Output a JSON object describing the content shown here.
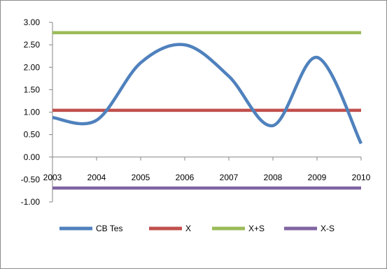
{
  "chart_data": {
    "type": "line",
    "title": "",
    "xlabel": "",
    "ylabel": "",
    "x": [
      "2003",
      "2004",
      "2005",
      "2006",
      "2007",
      "2008",
      "2009",
      "2010"
    ],
    "ylim": [
      -1.0,
      3.0
    ],
    "y_ticks": [
      "3.00",
      "2.50",
      "2.00",
      "1.50",
      "1.00",
      "0.50",
      "0.00",
      "-0.50",
      "-1.00"
    ],
    "y_tick_values": [
      3.0,
      2.5,
      2.0,
      1.5,
      1.0,
      0.5,
      0.0,
      -0.5,
      -1.0
    ],
    "smooth": true,
    "grid": false,
    "legend_position": "bottom",
    "series": [
      {
        "name": "CB Tes",
        "color": "#4f81bd",
        "values": [
          0.88,
          0.82,
          2.1,
          2.5,
          1.8,
          0.7,
          2.22,
          0.3
        ]
      },
      {
        "name": "X",
        "color": "#c0504d",
        "values": [
          1.04,
          1.04,
          1.04,
          1.04,
          1.04,
          1.04,
          1.04,
          1.04
        ]
      },
      {
        "name": "X+S",
        "color": "#9bbb59",
        "values": [
          2.77,
          2.77,
          2.77,
          2.77,
          2.77,
          2.77,
          2.77,
          2.77
        ]
      },
      {
        "name": "X-S",
        "color": "#8064a2",
        "values": [
          -0.69,
          -0.69,
          -0.69,
          -0.69,
          -0.69,
          -0.69,
          -0.69,
          -0.69
        ]
      }
    ]
  }
}
